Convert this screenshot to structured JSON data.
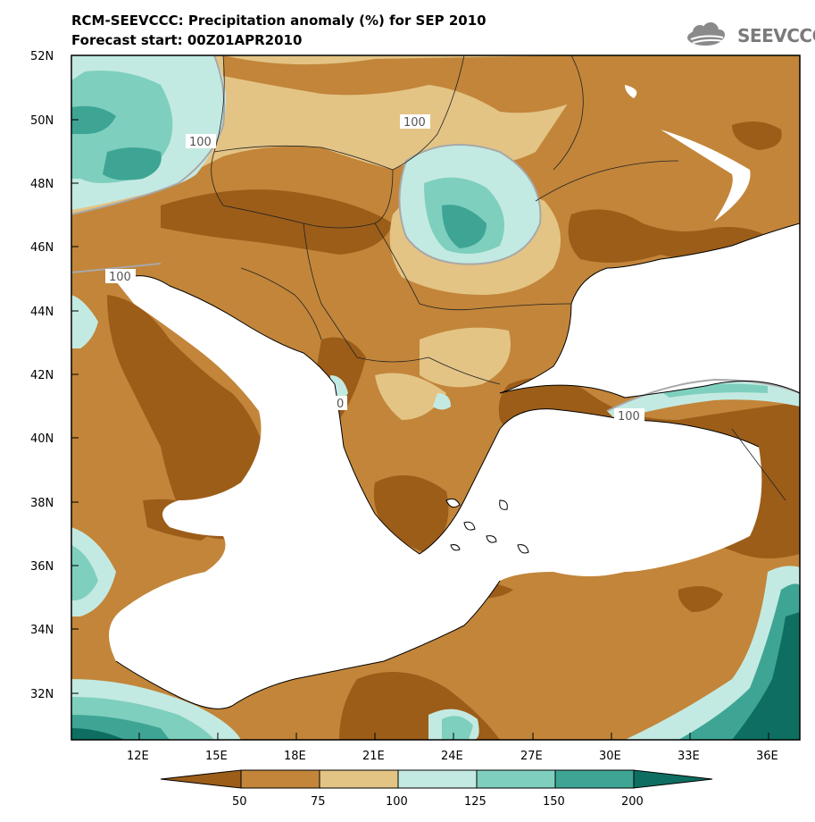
{
  "header": {
    "title": "RCM-SEEVCCC: Precipitation anomaly (%) for SEP 2010",
    "subtitle": "Forecast start: 00Z01APR2010",
    "logo_text": "SEEVCCC"
  },
  "map": {
    "projection": "lat-lon",
    "lat_range": [
      30.6,
      52
    ],
    "lon_range": [
      10,
      37
    ]
  },
  "axes": {
    "y_ticks": [
      "52N",
      "50N",
      "48N",
      "46N",
      "44N",
      "42N",
      "40N",
      "38N",
      "36N",
      "34N",
      "32N"
    ],
    "x_ticks": [
      "12E",
      "15E",
      "18E",
      "21E",
      "24E",
      "27E",
      "30E",
      "33E",
      "36E"
    ]
  },
  "contour_labels": [
    "100",
    "100",
    "100",
    "100",
    "0"
  ],
  "colorbar": {
    "colors": [
      "#9c5d19",
      "#c2853a",
      "#e3c485",
      "#c3eae2",
      "#7fcfbe",
      "#3ea595",
      "#0e6e62"
    ],
    "labels": [
      "50",
      "75",
      "100",
      "125",
      "150",
      "200"
    ]
  },
  "colors": {
    "dark_brown": "#9c5d19",
    "brown": "#c2853a",
    "tan": "#e3c485",
    "light_teal": "#c3eae2",
    "teal": "#7fcfbe",
    "mid_teal": "#3ea595",
    "dark_teal": "#0e6e62",
    "contour": "#a8a8a8"
  }
}
